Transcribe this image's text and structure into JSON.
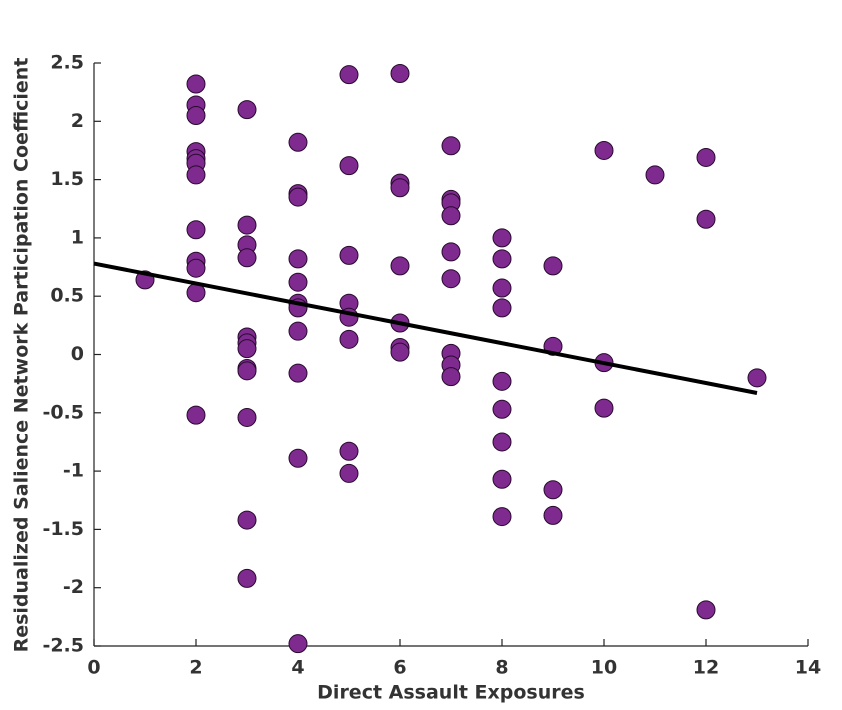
{
  "chart_data": {
    "type": "scatter",
    "xlabel": "Direct Assault Exposures",
    "ylabel": "Residualized Salience Network Participation Coefficient",
    "xlim": [
      0,
      14
    ],
    "ylim": [
      -2.5,
      2.5
    ],
    "xticks": [
      0,
      2,
      4,
      6,
      8,
      10,
      12,
      14
    ],
    "yticks": [
      -2.5,
      -2,
      -1.5,
      -1,
      -0.5,
      0,
      0.5,
      1,
      1.5,
      2,
      2.5
    ],
    "series": [
      {
        "type": "scatter",
        "color": "#7e2a8e",
        "x": [
          1,
          2,
          2,
          2,
          2,
          2,
          2,
          2,
          2,
          2,
          2,
          2,
          2,
          3,
          3,
          3,
          3,
          3,
          3,
          3,
          3,
          3,
          3,
          3,
          3,
          4,
          4,
          4,
          4,
          4,
          4,
          4,
          4,
          4,
          4,
          4,
          5,
          5,
          5,
          5,
          5,
          5,
          5,
          5,
          6,
          6,
          6,
          6,
          6,
          6,
          6,
          7,
          7,
          7,
          7,
          7,
          7,
          7,
          7,
          7,
          8,
          8,
          8,
          8,
          8,
          8,
          8,
          8,
          8,
          9,
          9,
          9,
          9,
          10,
          10,
          10,
          11,
          12,
          12,
          12,
          13
        ],
        "values": [
          0.64,
          2.32,
          2.14,
          2.05,
          1.74,
          1.68,
          1.64,
          1.54,
          1.07,
          0.8,
          0.74,
          0.53,
          -0.52,
          2.1,
          1.11,
          0.94,
          0.83,
          0.15,
          0.1,
          0.05,
          -0.12,
          -0.14,
          -0.54,
          -1.42,
          -1.92,
          1.82,
          1.38,
          1.35,
          0.82,
          0.62,
          0.44,
          0.4,
          0.2,
          -0.16,
          -0.89,
          -2.48,
          2.4,
          1.62,
          0.85,
          0.44,
          0.32,
          0.13,
          -0.83,
          -1.02,
          2.41,
          1.47,
          1.43,
          0.76,
          0.27,
          0.06,
          0.02,
          1.79,
          1.33,
          1.3,
          1.19,
          0.88,
          0.65,
          0.01,
          -0.09,
          -0.19,
          1.0,
          0.82,
          0.57,
          0.4,
          -0.23,
          -0.47,
          -0.75,
          -1.07,
          -1.39,
          0.76,
          0.07,
          -1.16,
          -1.38,
          1.75,
          -0.07,
          -0.46,
          1.54,
          1.69,
          1.16,
          -2.19,
          -0.2
        ]
      },
      {
        "type": "line",
        "color": "#000000",
        "x": [
          0,
          13
        ],
        "values": [
          0.78,
          -0.33
        ]
      }
    ]
  }
}
